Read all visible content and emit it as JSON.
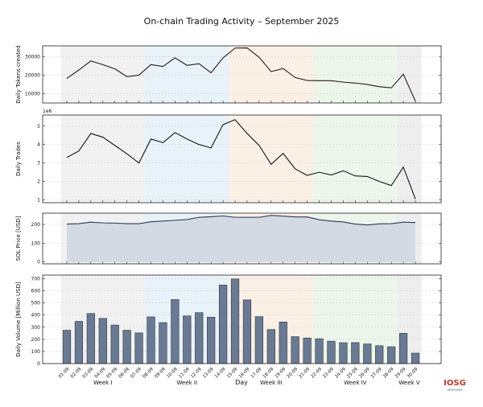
{
  "title": "On-chain Trading Activity – September 2025",
  "logo": {
    "text": "IOSG",
    "sub": "VENTURES"
  },
  "chart_data": [
    {
      "type": "line",
      "ylabel": "Daily Tokens created",
      "ylim": [
        5000,
        36000
      ],
      "yticks": [
        10000,
        20000,
        30000
      ],
      "grid": true,
      "values": [
        18300,
        22900,
        27800,
        25800,
        23500,
        19300,
        20100,
        25800,
        24800,
        29500,
        25400,
        26300,
        21400,
        29500,
        34800,
        34900,
        29800,
        22000,
        23700,
        18800,
        17200,
        17100,
        17100,
        16300,
        15800,
        15000,
        13800,
        13200,
        20600,
        6000
      ],
      "color": "#2a1a14"
    },
    {
      "type": "line",
      "ylabel": "Daily Trades",
      "offset_label": "1e6",
      "ylim": [
        0.85,
        5.6
      ],
      "yticks": [
        1,
        2,
        3,
        4,
        5
      ],
      "grid": true,
      "values": [
        3.3,
        3.65,
        4.6,
        4.4,
        3.95,
        3.5,
        3.0,
        4.3,
        4.1,
        4.65,
        4.3,
        4.0,
        3.82,
        5.08,
        5.35,
        4.6,
        3.95,
        2.93,
        3.52,
        2.68,
        2.33,
        2.5,
        2.35,
        2.58,
        2.3,
        2.27,
        2.0,
        1.78,
        2.78,
        1.05
      ],
      "color": "#0d1620"
    },
    {
      "type": "area",
      "ylabel": "SOL Price [USD]",
      "ylim": [
        -10,
        260
      ],
      "yticks": [
        0,
        100,
        200
      ],
      "grid": true,
      "values": [
        202,
        204,
        212,
        208,
        207,
        204,
        204,
        214,
        218,
        222,
        226,
        238,
        241,
        245,
        238,
        238,
        238,
        248,
        244,
        240,
        240,
        225,
        218,
        213,
        202,
        197,
        203,
        204,
        212,
        210
      ],
      "color": "#2b3a55",
      "fill": "#d3dae4"
    },
    {
      "type": "bar",
      "ylabel": "Daily Volume [Million USD]",
      "xlabel": "Day",
      "ylim": [
        0,
        730
      ],
      "yticks": [
        0,
        100,
        200,
        300,
        400,
        500,
        600,
        700
      ],
      "grid": true,
      "values": [
        275,
        348,
        413,
        373,
        318,
        275,
        253,
        385,
        338,
        528,
        393,
        420,
        383,
        648,
        698,
        525,
        387,
        281,
        343,
        222,
        211,
        205,
        185,
        172,
        173,
        162,
        147,
        139,
        250,
        86
      ],
      "color": "#6b7a93"
    }
  ],
  "categories": [
    "01-09",
    "02-09",
    "03-09",
    "04-09",
    "05-09",
    "06-09",
    "07-09",
    "08-09",
    "09-09",
    "10-09",
    "11-09",
    "12-09",
    "13-09",
    "14-09",
    "15-09",
    "16-09",
    "17-09",
    "18-09",
    "19-09",
    "20-09",
    "21-09",
    "22-09",
    "23-09",
    "24-09",
    "25-09",
    "26-09",
    "27-09",
    "28-09",
    "29-09",
    "30-09"
  ],
  "weeks": [
    {
      "label": "Week I",
      "start": 1,
      "end": 7,
      "color": "#f1f1f1"
    },
    {
      "label": "Week II",
      "start": 8,
      "end": 14,
      "color": "#e8f2f9"
    },
    {
      "label": "Week III",
      "start": 15,
      "end": 21,
      "color": "#fbf0e6"
    },
    {
      "label": "Week IV",
      "start": 22,
      "end": 28,
      "color": "#ecf6ea"
    },
    {
      "label": "Week V",
      "start": 29,
      "end": 30,
      "color": "#eeeeef"
    }
  ]
}
